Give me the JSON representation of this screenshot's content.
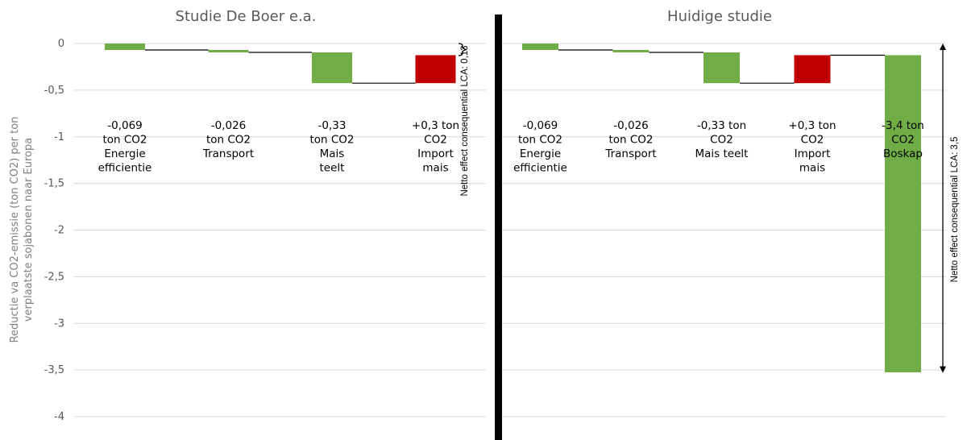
{
  "y_axis": {
    "label_line1": "Reductie va CO2-emissie (ton CO2) per ton",
    "label_line2": "verplaatste sojabonen naar Europa",
    "ticks": [
      "0",
      "-0,5",
      "-1",
      "-1,5",
      "-2",
      "-2,5",
      "-3",
      "-3,5",
      "-4"
    ]
  },
  "chart_data": [
    {
      "type": "waterfall",
      "title": "Studie De Boer e.a.",
      "ylim": [
        -4,
        0
      ],
      "grid": true,
      "categories": [
        [
          "-0,069",
          "ton CO2",
          "Energie",
          "efficientie"
        ],
        [
          "-0,026",
          "ton CO2",
          "Transport"
        ],
        [
          "-0,33",
          "ton CO2",
          "Mais",
          "teelt"
        ],
        [
          "+0,3 ton",
          "CO2",
          "Import",
          "mais"
        ]
      ],
      "values": [
        -0.069,
        -0.026,
        -0.33,
        0.3
      ],
      "colors": [
        "#70ad47",
        "#70ad47",
        "#70ad47",
        "#c00000"
      ],
      "annotation": "Netto effect consequential LCA: 0,13",
      "net": -0.13
    },
    {
      "type": "waterfall",
      "title": "Huidige studie",
      "ylim": [
        -4,
        0
      ],
      "grid": true,
      "categories": [
        [
          "-0,069",
          "ton CO2",
          "Energie",
          "efficientie"
        ],
        [
          "-0,026",
          "ton CO2",
          "Transport"
        ],
        [
          "-0,33 ton",
          "CO2",
          "Mais teelt"
        ],
        [
          "+0,3 ton",
          "CO2",
          "Import",
          "mais"
        ],
        [
          "-3,4 ton",
          "CO2",
          "Boskap"
        ]
      ],
      "values": [
        -0.069,
        -0.026,
        -0.33,
        0.3,
        -3.4
      ],
      "colors": [
        "#70ad47",
        "#70ad47",
        "#70ad47",
        "#c00000",
        "#70ad47"
      ],
      "annotation": "Netto effect consequential LCA: 3,5",
      "net": -3.53
    }
  ]
}
